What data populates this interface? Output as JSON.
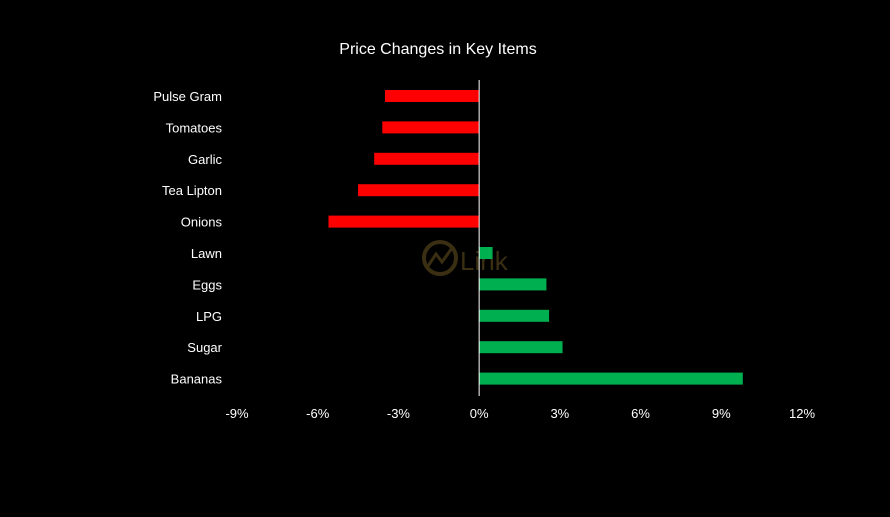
{
  "chart_data": {
    "type": "bar",
    "orientation": "horizontal",
    "title": "Price Changes in Key Items",
    "xlabel": "",
    "ylabel": "",
    "categories": [
      "Pulse Gram",
      "Tomatoes",
      "Garlic",
      "Tea Lipton",
      "Onions",
      "Lawn",
      "Eggs",
      "LPG",
      "Sugar",
      "Bananas"
    ],
    "values": [
      -3.5,
      -3.6,
      -3.9,
      -4.5,
      -5.6,
      0.5,
      2.5,
      2.6,
      3.1,
      9.8
    ],
    "xlim": [
      -9,
      12
    ],
    "xticks": [
      -9,
      -6,
      -3,
      0,
      3,
      6,
      9,
      12
    ],
    "xtick_labels": [
      "-9%",
      "-6%",
      "-3%",
      "0%",
      "3%",
      "6%",
      "9%",
      "12%"
    ],
    "grid": false,
    "legend": "none",
    "colors": {
      "negative": "#ff0000",
      "positive": "#00b050",
      "background": "#000000",
      "text": "#ffffff",
      "axis": "#ffffff"
    }
  },
  "watermark": {
    "text": "Link",
    "color": "#3a2f12"
  }
}
